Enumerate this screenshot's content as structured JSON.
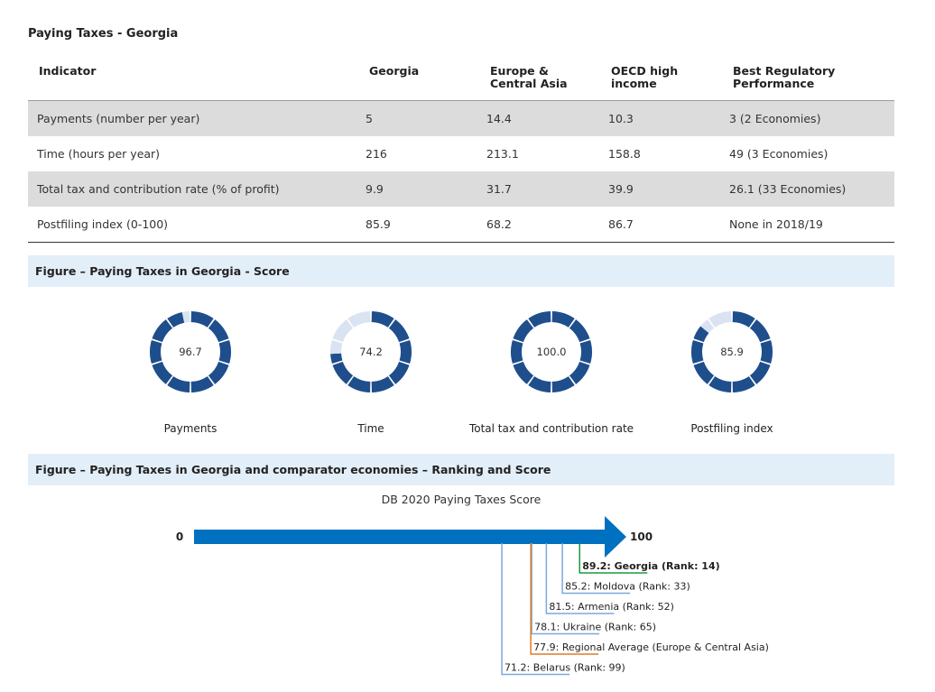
{
  "title": "Paying Taxes - Georgia",
  "table": {
    "headers": [
      "Indicator",
      "Georgia",
      "Europe & Central Asia",
      "OECD high income",
      "Best Regulatory Performance"
    ],
    "rows": [
      [
        "Payments (number per year)",
        "5",
        "14.4",
        "10.3",
        "3 (2 Economies)"
      ],
      [
        "Time (hours per year)",
        "216",
        "213.1",
        "158.8",
        "49 (3 Economies)"
      ],
      [
        "Total tax and contribution rate (% of profit)",
        "9.9",
        "31.7",
        "39.9",
        "26.1 (33 Economies)"
      ],
      [
        "Postfiling index (0-100)",
        "85.9",
        "68.2",
        "86.7",
        "None in 2018/19"
      ]
    ]
  },
  "score_figure": {
    "title": "Figure – Paying Taxes in Georgia - Score",
    "items": [
      {
        "label": "Payments",
        "value": 96.7,
        "display": "96.7"
      },
      {
        "label": "Time",
        "value": 74.2,
        "display": "74.2"
      },
      {
        "label": "Total tax and contribution rate",
        "value": 100.0,
        "display": "100.0"
      },
      {
        "label": "Postfiling index",
        "value": 85.9,
        "display": "85.9"
      }
    ],
    "colors": {
      "filled": "#1f4e8c",
      "empty": "#d9e3f2"
    }
  },
  "rank_figure": {
    "title": "Figure – Paying Taxes in Georgia and comparator economies – Ranking and Score",
    "subtitle": "DB 2020 Paying Taxes Score",
    "min_label": "0",
    "max_label": "100",
    "arrow_color": "#0070c0",
    "economies": [
      {
        "label": "89.2: Georgia (Rank: 14)",
        "score": 89.2,
        "color": "#1a9a3a",
        "bold": true
      },
      {
        "label": "85.2: Moldova (Rank: 33)",
        "score": 85.2,
        "color": "#7ba7e0",
        "bold": false
      },
      {
        "label": "81.5: Armenia (Rank: 52)",
        "score": 81.5,
        "color": "#7ba7e0",
        "bold": false
      },
      {
        "label": "78.1: Ukraine (Rank: 65)",
        "score": 78.1,
        "color": "#7ba7e0",
        "bold": false
      },
      {
        "label": "77.9: Regional Average (Europe & Central Asia)",
        "score": 77.9,
        "color": "#e07b22",
        "bold": false
      },
      {
        "label": "71.2: Belarus (Rank: 99)",
        "score": 71.2,
        "color": "#7ba7e0",
        "bold": false
      }
    ]
  }
}
